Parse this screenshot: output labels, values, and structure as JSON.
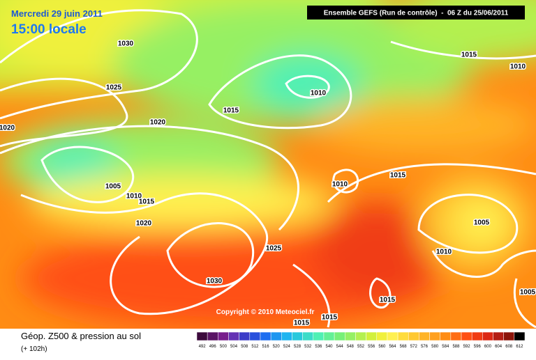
{
  "header": {
    "date": "Mercredi 29 juin 2011",
    "time": "15:00 locale",
    "run": "Ensemble GEFS (Run de contrôle)  -  06 Z du 25/06/2011"
  },
  "isobar_labels": [
    1030,
    1025,
    1020,
    1015,
    1010,
    1015,
    1010,
    1020,
    1005,
    1010,
    1015,
    1020,
    1010,
    1015,
    1005,
    1010,
    1025,
    1030,
    1015,
    1015,
    1015,
    1005
  ],
  "copyright": "Copyright © 2010 Meteociel.fr",
  "footer": {
    "title": "Géop. Z500 & pression au sol",
    "lead": "(+ 102h)"
  },
  "scale": {
    "values": [
      492,
      496,
      500,
      504,
      508,
      512,
      516,
      520,
      524,
      528,
      532,
      536,
      540,
      544,
      548,
      552,
      556,
      560,
      564,
      568,
      572,
      576,
      580,
      584,
      588,
      592,
      596,
      600,
      604,
      608,
      612
    ],
    "colors": [
      "#3c0a3c",
      "#5a1464",
      "#781e8c",
      "#6432b4",
      "#3c3cc8",
      "#2850dc",
      "#1e6ef0",
      "#1e96f0",
      "#1eb4f0",
      "#28c8dc",
      "#3cdcc8",
      "#50f0b4",
      "#64f096",
      "#78f078",
      "#96f064",
      "#b4f050",
      "#d2f03c",
      "#f0f03c",
      "#fff050",
      "#ffdc3c",
      "#ffc832",
      "#ffb428",
      "#ffa01e",
      "#ff8c14",
      "#ff6e14",
      "#ff5014",
      "#f03c14",
      "#dc2814",
      "#b41e14",
      "#8c140a",
      "#000000"
    ]
  }
}
